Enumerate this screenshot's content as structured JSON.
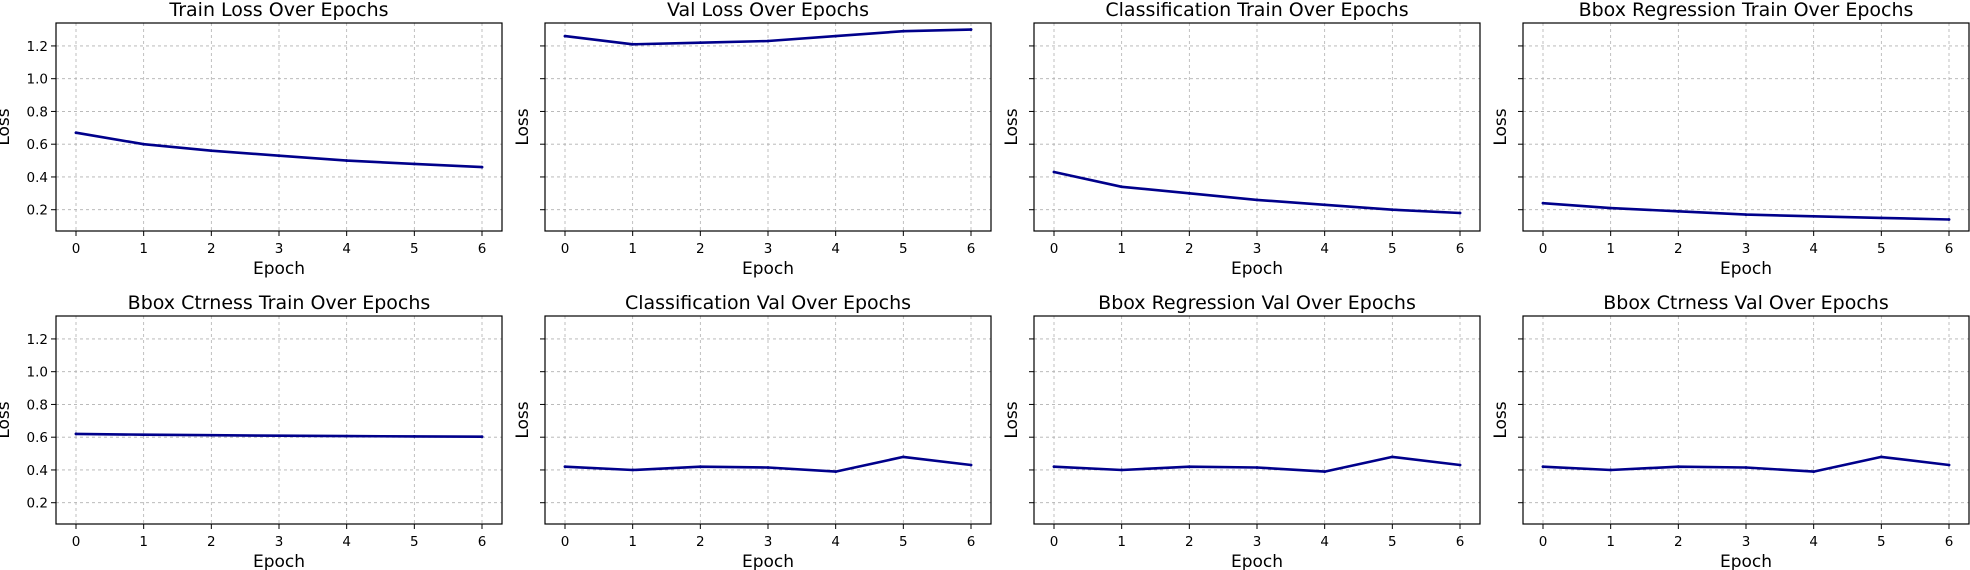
{
  "chart_data": [
    {
      "type": "line",
      "title": "Train Loss Over Epochs",
      "xlabel": "Epoch",
      "ylabel": "Loss",
      "x": [
        0,
        1,
        2,
        3,
        4,
        5,
        6
      ],
      "series": [
        {
          "values": [
            0.67,
            0.6,
            0.56,
            0.53,
            0.5,
            0.48,
            0.46
          ]
        }
      ],
      "xticks": [
        "0",
        "1",
        "2",
        "3",
        "4",
        "5",
        "6"
      ],
      "yticks": [
        "0.2",
        "0.4",
        "0.6",
        "0.8",
        "1.0",
        "1.2"
      ],
      "show_yticklabels": true,
      "ylim": [
        0.07,
        1.34
      ],
      "grid": true,
      "line_color": "#00008b"
    },
    {
      "type": "line",
      "title": "Val Loss Over Epochs",
      "xlabel": "Epoch",
      "ylabel": "Loss",
      "x": [
        0,
        1,
        2,
        3,
        4,
        5,
        6
      ],
      "series": [
        {
          "values": [
            1.26,
            1.21,
            1.22,
            1.23,
            1.26,
            1.29,
            1.3
          ]
        }
      ],
      "xticks": [
        "0",
        "1",
        "2",
        "3",
        "4",
        "5",
        "6"
      ],
      "yticks": [
        "0.2",
        "0.4",
        "0.6",
        "0.8",
        "1.0",
        "1.2"
      ],
      "show_yticklabels": false,
      "ylim": [
        0.07,
        1.34
      ],
      "grid": true,
      "line_color": "#00008b"
    },
    {
      "type": "line",
      "title": "Classification Train Over Epochs",
      "xlabel": "Epoch",
      "ylabel": "Loss",
      "x": [
        0,
        1,
        2,
        3,
        4,
        5,
        6
      ],
      "series": [
        {
          "values": [
            0.43,
            0.34,
            0.3,
            0.26,
            0.23,
            0.2,
            0.18
          ]
        }
      ],
      "xticks": [
        "0",
        "1",
        "2",
        "3",
        "4",
        "5",
        "6"
      ],
      "yticks": [
        "0.2",
        "0.4",
        "0.6",
        "0.8",
        "1.0",
        "1.2"
      ],
      "show_yticklabels": false,
      "ylim": [
        0.07,
        1.34
      ],
      "grid": true,
      "line_color": "#00008b"
    },
    {
      "type": "line",
      "title": "Bbox Regression Train Over Epochs",
      "xlabel": "Epoch",
      "ylabel": "Loss",
      "x": [
        0,
        1,
        2,
        3,
        4,
        5,
        6
      ],
      "series": [
        {
          "values": [
            0.24,
            0.21,
            0.19,
            0.17,
            0.16,
            0.15,
            0.14
          ]
        }
      ],
      "xticks": [
        "0",
        "1",
        "2",
        "3",
        "4",
        "5",
        "6"
      ],
      "yticks": [
        "0.2",
        "0.4",
        "0.6",
        "0.8",
        "1.0",
        "1.2"
      ],
      "show_yticklabels": false,
      "ylim": [
        0.07,
        1.34
      ],
      "grid": true,
      "line_color": "#00008b"
    },
    {
      "type": "line",
      "title": "Bbox Ctrness Train Over Epochs",
      "xlabel": "Epoch",
      "ylabel": "Loss",
      "x": [
        0,
        1,
        2,
        3,
        4,
        5,
        6
      ],
      "series": [
        {
          "values": [
            0.62,
            0.615,
            0.612,
            0.609,
            0.607,
            0.605,
            0.603
          ]
        }
      ],
      "xticks": [
        "0",
        "1",
        "2",
        "3",
        "4",
        "5",
        "6"
      ],
      "yticks": [
        "0.2",
        "0.4",
        "0.6",
        "0.8",
        "1.0",
        "1.2"
      ],
      "show_yticklabels": true,
      "ylim": [
        0.07,
        1.34
      ],
      "grid": true,
      "line_color": "#00008b"
    },
    {
      "type": "line",
      "title": "Classification Val Over Epochs",
      "xlabel": "Epoch",
      "ylabel": "Loss",
      "x": [
        0,
        1,
        2,
        3,
        4,
        5,
        6
      ],
      "series": [
        {
          "values": [
            0.42,
            0.4,
            0.42,
            0.415,
            0.39,
            0.48,
            0.43
          ]
        }
      ],
      "xticks": [
        "0",
        "1",
        "2",
        "3",
        "4",
        "5",
        "6"
      ],
      "yticks": [
        "0.2",
        "0.4",
        "0.6",
        "0.8",
        "1.0",
        "1.2"
      ],
      "show_yticklabels": false,
      "ylim": [
        0.07,
        1.34
      ],
      "grid": true,
      "line_color": "#00008b"
    },
    {
      "type": "line",
      "title": "Bbox Regression Val Over Epochs",
      "xlabel": "Epoch",
      "ylabel": "Loss",
      "x": [
        0,
        1,
        2,
        3,
        4,
        5,
        6
      ],
      "series": [
        {
          "values": [
            0.42,
            0.4,
            0.42,
            0.415,
            0.39,
            0.48,
            0.43
          ]
        }
      ],
      "xticks": [
        "0",
        "1",
        "2",
        "3",
        "4",
        "5",
        "6"
      ],
      "yticks": [
        "0.2",
        "0.4",
        "0.6",
        "0.8",
        "1.0",
        "1.2"
      ],
      "show_yticklabels": false,
      "ylim": [
        0.07,
        1.34
      ],
      "grid": true,
      "line_color": "#00008b"
    },
    {
      "type": "line",
      "title": "Bbox Ctrness Val Over Epochs",
      "xlabel": "Epoch",
      "ylabel": "Loss",
      "x": [
        0,
        1,
        2,
        3,
        4,
        5,
        6
      ],
      "series": [
        {
          "values": [
            0.42,
            0.4,
            0.42,
            0.415,
            0.39,
            0.48,
            0.43
          ]
        }
      ],
      "xticks": [
        "0",
        "1",
        "2",
        "3",
        "4",
        "5",
        "6"
      ],
      "yticks": [
        "0.2",
        "0.4",
        "0.6",
        "0.8",
        "1.0",
        "1.2"
      ],
      "show_yticklabels": false,
      "ylim": [
        0.07,
        1.34
      ],
      "grid": true,
      "line_color": "#00008b"
    }
  ]
}
